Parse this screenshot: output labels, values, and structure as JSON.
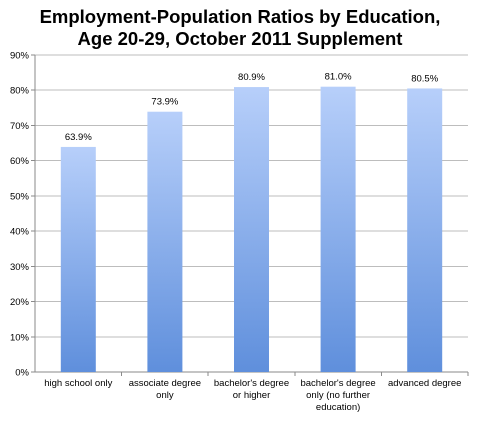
{
  "chart_data": {
    "type": "bar",
    "title_lines": [
      "Employment-Population Ratios by Education,",
      "Age 20-29, October 2011 Supplement"
    ],
    "categories": [
      [
        "high school only"
      ],
      [
        "associate degree",
        "only"
      ],
      [
        "bachelor's degree",
        "or higher"
      ],
      [
        "bachelor's degree",
        "only (no further",
        "education)"
      ],
      [
        "advanced degree"
      ]
    ],
    "values": [
      63.9,
      73.9,
      80.9,
      81.0,
      80.5
    ],
    "data_labels": [
      "63.9%",
      "73.9%",
      "80.9%",
      "81.0%",
      "80.5%"
    ],
    "ylim": [
      0,
      90
    ],
    "y_ticks": [
      0,
      10,
      20,
      30,
      40,
      50,
      60,
      70,
      80,
      90
    ],
    "y_tick_labels": [
      "0%",
      "10%",
      "20%",
      "30%",
      "40%",
      "50%",
      "60%",
      "70%",
      "80%",
      "90%"
    ],
    "grid": true,
    "legend": "none",
    "colors": {
      "bar_top": "#b7cffa",
      "bar_bottom": "#5f8fdc",
      "grid": "#bdbdbd",
      "axis": "#8a8a8a"
    }
  }
}
